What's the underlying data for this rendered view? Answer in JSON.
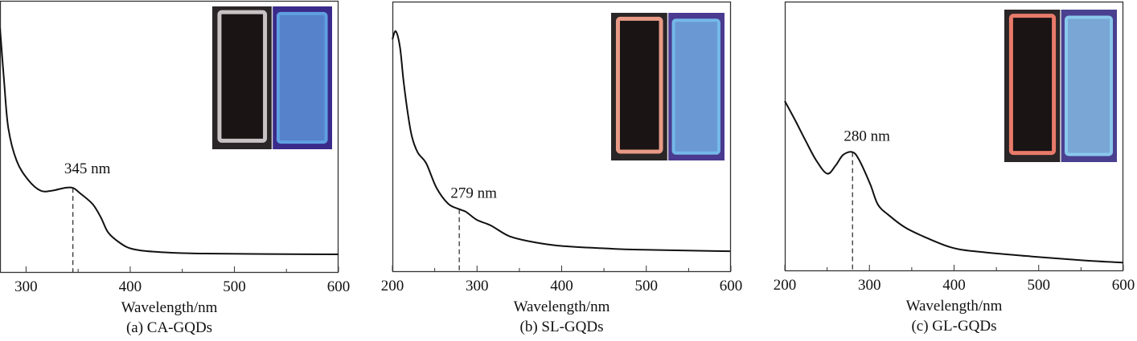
{
  "chart_data": [
    {
      "type": "line",
      "caption": "(a) CA-GQDs",
      "xlabel": "Wavelength/nm",
      "ylabel": "",
      "xlim": [
        275,
        600
      ],
      "ylim": [
        0,
        1
      ],
      "xticks": [
        300,
        400,
        500,
        600
      ],
      "xtick_labels": [
        "300",
        "400",
        "500",
        "600"
      ],
      "minor_xticks": [
        350,
        450,
        550
      ],
      "grid": false,
      "annotation": {
        "label": "345 nm",
        "x": 345
      },
      "inset": {
        "left_tint": "#c9c2c4",
        "right_tint": "#5fa0e0",
        "right_bg": "#3a2a8a"
      },
      "series": [
        {
          "x": [
            275,
            279,
            283,
            291,
            302,
            314,
            325,
            337,
            345,
            352,
            364,
            372,
            379,
            391,
            402,
            422,
            468,
            600
          ],
          "y": [
            0.9,
            0.7,
            0.53,
            0.41,
            0.34,
            0.3,
            0.3,
            0.31,
            0.31,
            0.29,
            0.25,
            0.2,
            0.145,
            0.105,
            0.085,
            0.075,
            0.068,
            0.065
          ]
        }
      ]
    },
    {
      "type": "line",
      "caption": "(b) SL-GQDs",
      "xlabel": "Wavelength/nm",
      "ylabel": "",
      "xlim": [
        200,
        600
      ],
      "ylim": [
        0,
        1
      ],
      "xticks": [
        200,
        300,
        400,
        500,
        600
      ],
      "xtick_labels": [
        "200",
        "300",
        "400",
        "500",
        "600"
      ],
      "minor_xticks": [
        250,
        350,
        450,
        550
      ],
      "grid": false,
      "annotation": {
        "label": "279 nm",
        "x": 279
      },
      "inset": {
        "left_tint": "#e89a86",
        "right_tint": "#74b8e8",
        "right_bg": "#4a3a90"
      },
      "series": [
        {
          "x": [
            200,
            204,
            209,
            213,
            218,
            223,
            230,
            240,
            252,
            266,
            279,
            287,
            300,
            316,
            338,
            363,
            395,
            442,
            490,
            599
          ],
          "y": [
            0.86,
            0.89,
            0.83,
            0.71,
            0.59,
            0.5,
            0.44,
            0.4,
            0.31,
            0.25,
            0.23,
            0.22,
            0.19,
            0.17,
            0.13,
            0.11,
            0.095,
            0.086,
            0.08,
            0.074
          ]
        }
      ]
    },
    {
      "type": "line",
      "caption": "(c) GL-GQDs",
      "xlabel": "Wavelength/nm",
      "ylabel": "",
      "xlim": [
        200,
        600
      ],
      "ylim": [
        0,
        1
      ],
      "xticks": [
        200,
        300,
        400,
        500,
        600
      ],
      "xtick_labels": [
        "200",
        "300",
        "400",
        "500",
        "600"
      ],
      "minor_xticks": [
        250,
        350,
        450,
        550
      ],
      "grid": false,
      "annotation": {
        "label": "280 nm",
        "x": 280
      },
      "inset": {
        "left_tint": "#e87a6a",
        "right_tint": "#8ac8ec",
        "right_bg": "#4a4090"
      },
      "series": [
        {
          "x": [
            200,
            212,
            225,
            237,
            250,
            260,
            269,
            280,
            288,
            301,
            310,
            323,
            342,
            364,
            396,
            427,
            491,
            554,
            600
          ],
          "y": [
            0.63,
            0.56,
            0.48,
            0.41,
            0.36,
            0.39,
            0.43,
            0.44,
            0.41,
            0.32,
            0.245,
            0.205,
            0.16,
            0.126,
            0.086,
            0.07,
            0.052,
            0.037,
            0.029
          ]
        }
      ]
    }
  ]
}
